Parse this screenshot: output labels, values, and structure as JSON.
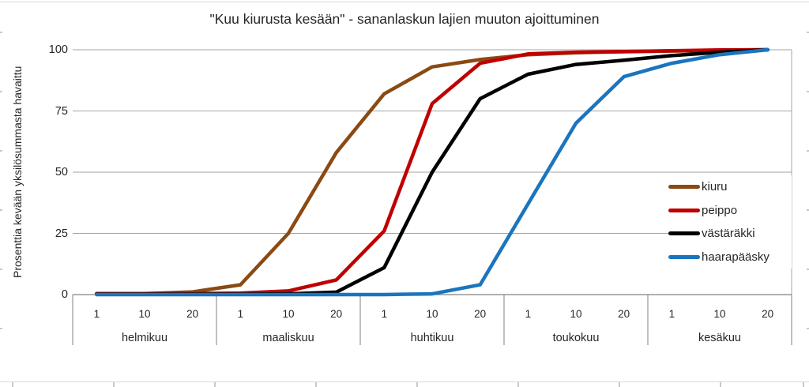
{
  "title": "\"Kuu kiurusta kesään\" - sananlaskun lajien muuton ajoittuminen",
  "chart_data": {
    "type": "line",
    "title": "\"Kuu kiurusta kesään\" - sananlaskun lajien muuton ajoittuminen",
    "ylabel": "Prosenttia kevään yksilösummasta havaittu",
    "xlabel": "",
    "ylim": [
      0,
      100
    ],
    "yticks": [
      0,
      25,
      50,
      75,
      100
    ],
    "grid": true,
    "legend_position": "right-inside",
    "x_categories": [
      {
        "month": "helmikuu",
        "day": "1"
      },
      {
        "month": "helmikuu",
        "day": "10"
      },
      {
        "month": "helmikuu",
        "day": "20"
      },
      {
        "month": "maaliskuu",
        "day": "1"
      },
      {
        "month": "maaliskuu",
        "day": "10"
      },
      {
        "month": "maaliskuu",
        "day": "20"
      },
      {
        "month": "huhtikuu",
        "day": "1"
      },
      {
        "month": "huhtikuu",
        "day": "10"
      },
      {
        "month": "huhtikuu",
        "day": "20"
      },
      {
        "month": "toukokuu",
        "day": "1"
      },
      {
        "month": "toukokuu",
        "day": "10"
      },
      {
        "month": "toukokuu",
        "day": "20"
      },
      {
        "month": "kesäkuu",
        "day": "1"
      },
      {
        "month": "kesäkuu",
        "day": "10"
      },
      {
        "month": "kesäkuu",
        "day": "20"
      }
    ],
    "series": [
      {
        "name": "kiuru",
        "color": "#8B4A13",
        "values": [
          0.4,
          0.4,
          1.1,
          4,
          25,
          58,
          82,
          93,
          96,
          98,
          98.8,
          99.2,
          99.5,
          99.8,
          100
        ]
      },
      {
        "name": "peippo",
        "color": "#C00000",
        "values": [
          0.4,
          0.4,
          0.4,
          0.6,
          1.5,
          6,
          26,
          78,
          94.5,
          98.3,
          99,
          99.3,
          99.6,
          99.9,
          100
        ]
      },
      {
        "name": "västäräkki",
        "color": "#000000",
        "values": [
          0.15,
          0.15,
          0.15,
          0.15,
          0.3,
          1,
          11,
          50,
          80,
          90,
          94,
          95.7,
          97.6,
          99,
          100
        ]
      },
      {
        "name": "haarapääsky",
        "color": "#1B75BE",
        "values": [
          0,
          0,
          0,
          0,
          0,
          0,
          0,
          0.3,
          4,
          37,
          70,
          89,
          94.5,
          98,
          100
        ]
      }
    ]
  },
  "colors": {
    "gridline": "#A6A6A6",
    "axis_line": "#808080",
    "separator": "#808080",
    "text": "#262626",
    "chart_border": "#D9D9D9"
  }
}
